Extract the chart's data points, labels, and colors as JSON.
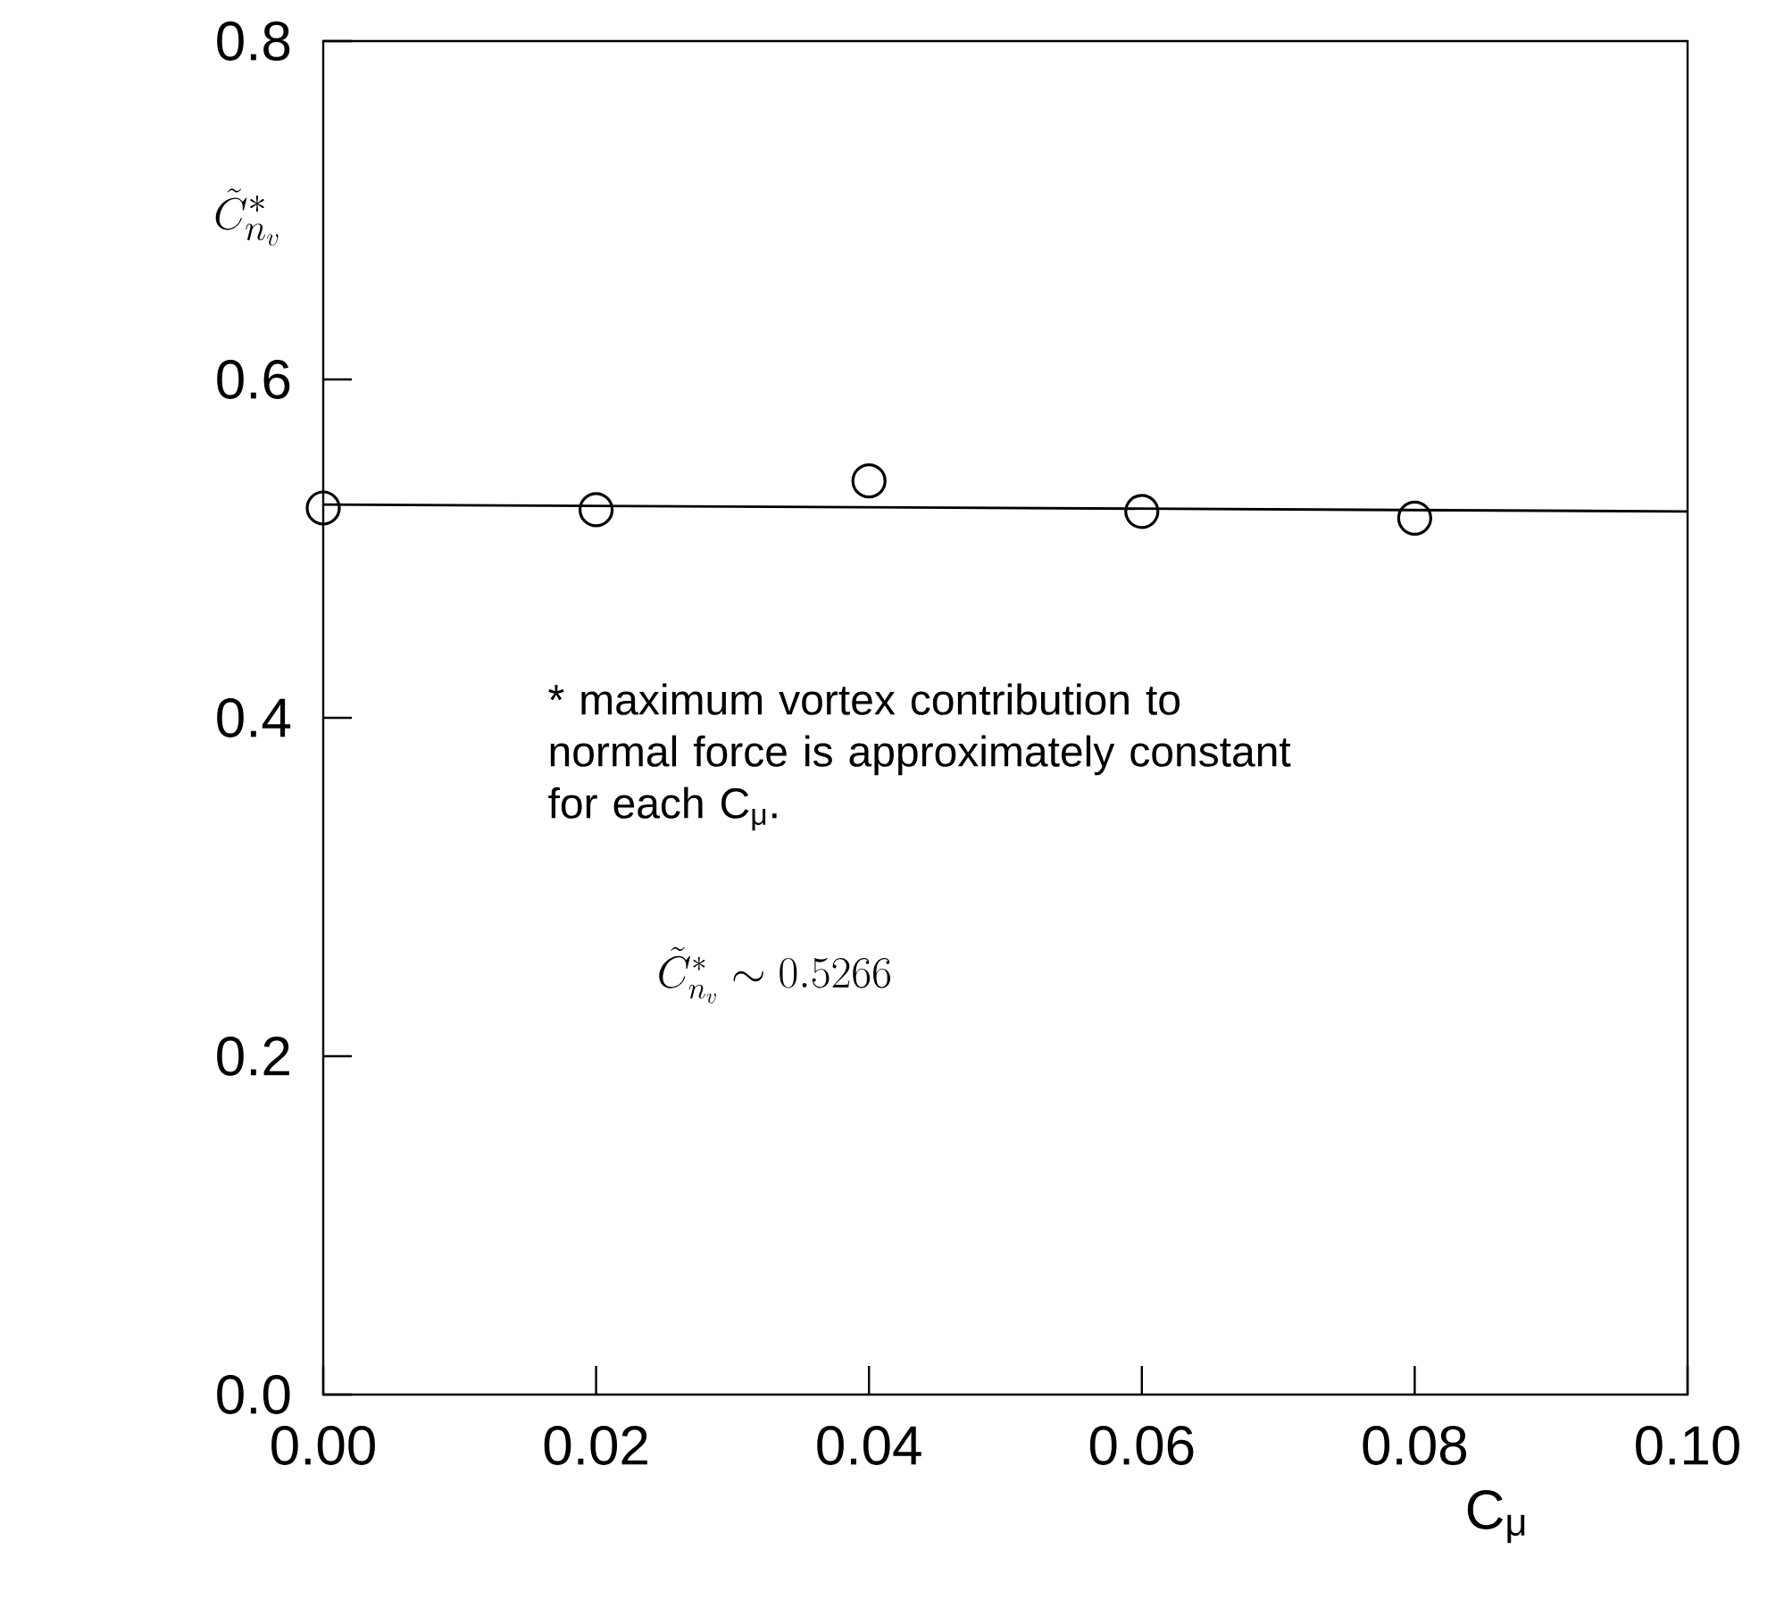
{
  "chart_data": {
    "type": "scatter",
    "xlabel": "C$_{μ}$",
    "ylabel": "\\tilde{C}_{n_v}^{*}",
    "x": [
      0.0,
      0.02,
      0.04,
      0.06,
      0.08
    ],
    "series": [
      {
        "color": "#000000",
        "marker": "circle",
        "values": [
          0.524,
          0.523,
          0.54,
          0.522,
          0.518
        ]
      },
      {
        "type": "line",
        "color": "#000000",
        "line_style": "solid",
        "x": [
          0.0,
          0.1
        ],
        "values": [
          0.526,
          0.522
        ]
      }
    ],
    "xlim": [
      0,
      0.1
    ],
    "ylim": [
      0,
      0.8
    ],
    "xticks": [
      {
        "value": 0,
        "label": "0.00"
      },
      {
        "value": 0.02,
        "label": "0.02"
      },
      {
        "value": 0.04,
        "label": "0.04"
      },
      {
        "value": 0.06,
        "label": "0.06"
      },
      {
        "value": 0.08,
        "label": "0.08"
      },
      {
        "value": 0.1,
        "label": "0.10"
      }
    ],
    "yticks": [
      {
        "value": 0,
        "label": "0.0"
      },
      {
        "value": 0.2,
        "label": "0.2"
      },
      {
        "value": 0.4,
        "label": "0.4"
      },
      {
        "value": 0.6,
        "label": "0.6"
      },
      {
        "value": 0.8,
        "label": "0.8"
      }
    ],
    "grid": false,
    "annotations": [
      "* maximum vortex contribution to normal force is approximately constant for each C$_{μ}$.",
      "\\tilde{C}_{n_v}^{*} \\sim 0.5266"
    ]
  }
}
